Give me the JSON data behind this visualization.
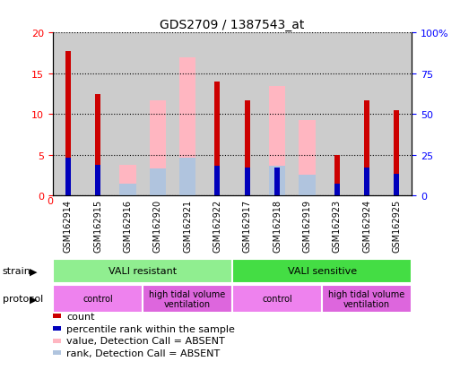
{
  "title": "GDS2709 / 1387543_at",
  "samples": [
    "GSM162914",
    "GSM162915",
    "GSM162916",
    "GSM162920",
    "GSM162921",
    "GSM162922",
    "GSM162917",
    "GSM162918",
    "GSM162919",
    "GSM162923",
    "GSM162924",
    "GSM162925"
  ],
  "count_values": [
    17.7,
    12.5,
    0,
    0,
    0,
    14.0,
    11.7,
    0,
    0,
    5.0,
    11.7,
    10.5
  ],
  "rank_values": [
    4.7,
    3.8,
    0,
    0,
    0,
    3.7,
    3.5,
    3.5,
    0,
    1.5,
    3.4,
    2.7
  ],
  "absent_value_values": [
    0,
    0,
    3.8,
    11.7,
    17.0,
    0,
    0,
    13.4,
    9.3,
    0,
    0,
    0
  ],
  "absent_rank_values": [
    0,
    0,
    1.5,
    3.3,
    4.7,
    0,
    0,
    3.7,
    2.6,
    0,
    0,
    0
  ],
  "ylim": [
    0,
    20
  ],
  "yticks": [
    0,
    5,
    10,
    15,
    20
  ],
  "y2ticks": [
    0,
    25,
    50,
    75,
    100
  ],
  "y2labels": [
    "0",
    "25",
    "50",
    "75",
    "100%"
  ],
  "strain_groups": [
    {
      "label": "VALI resistant",
      "start": 0,
      "end": 6,
      "color": "#90ee90"
    },
    {
      "label": "VALI sensitive",
      "start": 6,
      "end": 12,
      "color": "#44dd44"
    }
  ],
  "protocol_groups": [
    {
      "label": "control",
      "start": 0,
      "end": 3,
      "color": "#ee82ee"
    },
    {
      "label": "high tidal volume\nventilation",
      "start": 3,
      "end": 6,
      "color": "#dd66dd"
    },
    {
      "label": "control",
      "start": 6,
      "end": 9,
      "color": "#ee82ee"
    },
    {
      "label": "high tidal volume\nventilation",
      "start": 9,
      "end": 12,
      "color": "#dd66dd"
    }
  ],
  "color_count": "#cc0000",
  "color_rank": "#0000bb",
  "color_absent_value": "#ffb6c1",
  "color_absent_rank": "#b0c4de",
  "bg_color": "#cccccc",
  "plot_bg": "#ffffff",
  "wide_bar_width": 0.55,
  "narrow_bar_width": 0.18,
  "legend_items": [
    {
      "color": "#cc0000",
      "label": "count"
    },
    {
      "color": "#0000bb",
      "label": "percentile rank within the sample"
    },
    {
      "color": "#ffb6c1",
      "label": "value, Detection Call = ABSENT"
    },
    {
      "color": "#b0c4de",
      "label": "rank, Detection Call = ABSENT"
    }
  ]
}
